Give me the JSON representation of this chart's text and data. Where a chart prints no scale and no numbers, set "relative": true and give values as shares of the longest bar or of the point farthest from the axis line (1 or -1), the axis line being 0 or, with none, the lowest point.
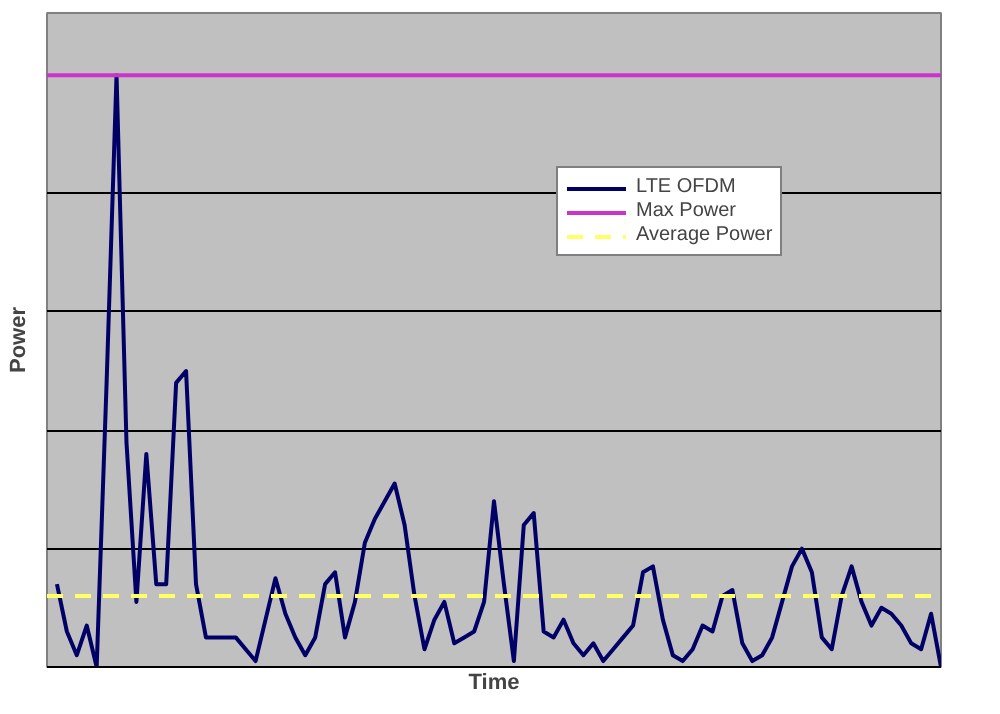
{
  "chart_data": {
    "type": "line",
    "relative": true,
    "xlabel": "Time",
    "ylabel": "Power",
    "categories": [
      null,
      null,
      null,
      null,
      null,
      null,
      null,
      null,
      null,
      null,
      null,
      null,
      null,
      null,
      null,
      null,
      null,
      null,
      null,
      null,
      null,
      null,
      null,
      null,
      null,
      null,
      null,
      null,
      null,
      null,
      null,
      null,
      null,
      null,
      null,
      null,
      null,
      null,
      null,
      null,
      null,
      null,
      null,
      null,
      null,
      null,
      null,
      null,
      null,
      null,
      null,
      null,
      null,
      null,
      null,
      null,
      null,
      null,
      null,
      null,
      null,
      null,
      null,
      null,
      null,
      null,
      null,
      null,
      null,
      null,
      null,
      null,
      null,
      null,
      null,
      null,
      null,
      null,
      null,
      null,
      null,
      null,
      null,
      null,
      null,
      null,
      null,
      null,
      null,
      null
    ],
    "series": [
      {
        "name": "LTE OFDM",
        "color": "#000066",
        "values": [
          0.14,
          0.06,
          0.02,
          0.07,
          0.0,
          0.48,
          1.0,
          0.38,
          0.11,
          0.36,
          0.14,
          0.14,
          0.48,
          0.5,
          0.14,
          0.05,
          0.05,
          0.05,
          0.05,
          0.03,
          0.01,
          0.08,
          0.15,
          0.09,
          0.05,
          0.02,
          0.05,
          0.14,
          0.16,
          0.05,
          0.11,
          0.21,
          0.25,
          0.28,
          0.31,
          0.24,
          0.12,
          0.03,
          0.08,
          0.11,
          0.04,
          0.05,
          0.06,
          0.11,
          0.28,
          0.14,
          0.01,
          0.24,
          0.26,
          0.06,
          0.05,
          0.08,
          0.04,
          0.02,
          0.04,
          0.01,
          0.03,
          0.05,
          0.07,
          0.16,
          0.17,
          0.08,
          0.02,
          0.01,
          0.03,
          0.07,
          0.06,
          0.12,
          0.13,
          0.04,
          0.01,
          0.02,
          0.05,
          0.11,
          0.17,
          0.2,
          0.16,
          0.05,
          0.03,
          0.12,
          0.17,
          0.11,
          0.07,
          0.1,
          0.09,
          0.07,
          0.04,
          0.03,
          0.09,
          0.0
        ]
      }
    ],
    "ref_lines": [
      {
        "axis": "y",
        "value": 1.0,
        "label": "Max Power",
        "color": "#cc33cc",
        "line_style": "solid"
      },
      {
        "axis": "y",
        "value": 0.12,
        "label": "Average Power",
        "color": "#ffff66",
        "line_style": "dashed"
      }
    ],
    "grid": "y",
    "legend": "top right",
    "tick_labels": false
  }
}
